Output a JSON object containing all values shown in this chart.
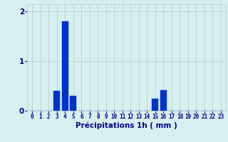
{
  "hours": [
    0,
    1,
    2,
    3,
    4,
    5,
    6,
    7,
    8,
    9,
    10,
    11,
    12,
    13,
    14,
    15,
    16,
    17,
    18,
    19,
    20,
    21,
    22,
    23
  ],
  "values": [
    0,
    0,
    0,
    0.4,
    1.8,
    0.3,
    0,
    0,
    0,
    0,
    0,
    0,
    0,
    0,
    0,
    0.25,
    0.42,
    0,
    0,
    0,
    0,
    0,
    0,
    0
  ],
  "bar_color": "#0033cc",
  "bar_edge_color": "#0033cc",
  "background_color": "#d6efef",
  "grid_color": "#b8d0d0",
  "tick_color": "#00008b",
  "xlabel": "Précipitations 1h ( mm )",
  "ylim": [
    0,
    2.15
  ],
  "yticks": [
    0,
    1,
    2
  ],
  "xlabel_fontsize": 7.5,
  "tick_fontsize": 5.5
}
